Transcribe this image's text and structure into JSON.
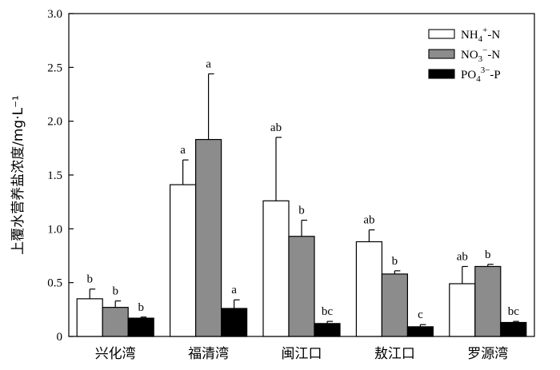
{
  "chart_data": {
    "type": "bar",
    "ylabel": "上覆水营养盐浓度/mg·L⁻¹",
    "ylim": [
      0,
      3.0
    ],
    "yticks": [
      "0",
      "0.5",
      "1.0",
      "1.5",
      "2.0",
      "2.5",
      "3.0"
    ],
    "yticks_values": [
      0,
      0.5,
      1.0,
      1.5,
      2.0,
      2.5,
      3.0
    ],
    "categories": [
      "兴化湾",
      "福清湾",
      "闽江口",
      "敖江口",
      "罗源湾"
    ],
    "series": [
      {
        "name": "NH4+-N",
        "fill": "#ffffff",
        "values": [
          0.35,
          1.41,
          1.26,
          0.88,
          0.49
        ],
        "errors": [
          0.09,
          0.23,
          0.59,
          0.11,
          0.16
        ],
        "letters": [
          "b",
          "a",
          "ab",
          "ab",
          "ab"
        ]
      },
      {
        "name": "NO3−-N",
        "fill": "#8c8c8c",
        "values": [
          0.27,
          1.83,
          0.93,
          0.58,
          0.65
        ],
        "errors": [
          0.06,
          0.61,
          0.15,
          0.03,
          0.02
        ],
        "letters": [
          "b",
          "a",
          "b",
          "b",
          "b"
        ]
      },
      {
        "name": "PO43−-P",
        "fill": "#000000",
        "values": [
          0.17,
          0.26,
          0.12,
          0.09,
          0.13
        ],
        "errors": [
          0.01,
          0.08,
          0.02,
          0.02,
          0.01
        ],
        "letters": [
          "b",
          "a",
          "bc",
          "c",
          "bc"
        ]
      }
    ],
    "legend": {
      "placement": "top-right",
      "entries": [
        {
          "base": "NH",
          "sub": "4",
          "sup": "+",
          "suffix": "-N"
        },
        {
          "base": "NO",
          "sub": "3",
          "sup": "−",
          "suffix": "-N"
        },
        {
          "base": "PO",
          "sub": "4",
          "sup": "3−",
          "suffix": "-P"
        }
      ]
    },
    "grid": false
  }
}
